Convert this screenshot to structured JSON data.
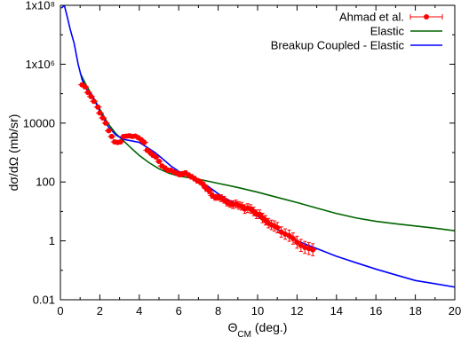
{
  "chart_data": {
    "type": "line",
    "xlabel": "Θ",
    "xlabel_sub": "CM",
    "xlabel_unit": " (deg.)",
    "ylabel": "dσ/dΩ (mb/sr)",
    "xlim": [
      0,
      20
    ],
    "ylim": [
      0.01,
      100000000
    ],
    "y_scale": "log",
    "grid": false,
    "legend_position": "top-right",
    "x_ticks": [
      0,
      2,
      4,
      6,
      8,
      10,
      12,
      14,
      16,
      18,
      20
    ],
    "x_tick_labels": [
      "0",
      "2",
      "4",
      "6",
      "8",
      "10",
      "12",
      "14",
      "16",
      "18",
      "20"
    ],
    "y_ticks": [
      0.01,
      1,
      100,
      10000,
      1000000,
      100000000
    ],
    "y_tick_labels": [
      "0.01",
      "1",
      "100",
      "10000",
      "1x10⁶",
      "1x10⁸"
    ],
    "series": [
      {
        "name": "Ahmad et al.",
        "kind": "points-with-errorbars",
        "color": "#ff0000",
        "x": [
          1.1,
          1.25,
          1.4,
          1.55,
          1.7,
          1.9,
          2.0,
          2.15,
          2.3,
          2.45,
          2.6,
          2.75,
          2.9,
          3.05,
          3.2,
          3.35,
          3.5,
          3.65,
          3.8,
          3.95,
          4.1,
          4.25,
          4.4,
          4.55,
          4.7,
          4.85,
          5.0,
          5.15,
          5.3,
          5.45,
          5.6,
          5.75,
          5.9,
          6.05,
          6.2,
          6.35,
          6.5,
          6.65,
          6.8,
          6.95,
          7.1,
          7.25,
          7.4,
          7.55,
          7.7,
          7.85,
          8.0,
          8.15,
          8.3,
          8.45,
          8.6,
          8.75,
          8.9,
          9.05,
          9.2,
          9.35,
          9.5,
          9.65,
          9.8,
          9.95,
          10.1,
          10.25,
          10.4,
          10.55,
          10.7,
          10.85,
          11.0,
          11.2,
          11.4,
          11.6,
          11.8,
          12.0,
          12.2,
          12.4,
          12.6,
          12.8
        ],
        "y": [
          200000,
          170000,
          110000,
          80000,
          55000,
          35000,
          22000,
          15000,
          10000,
          5500,
          3500,
          2300,
          2200,
          2300,
          3500,
          3600,
          3700,
          3500,
          3600,
          3200,
          2700,
          2200,
          1200,
          1000,
          800,
          700,
          500,
          350,
          300,
          250,
          250,
          220,
          200,
          180,
          190,
          200,
          170,
          150,
          130,
          110,
          100,
          80,
          60,
          50,
          35,
          30,
          30,
          28,
          25,
          20,
          18,
          17,
          18,
          16,
          15,
          12,
          13,
          12,
          10,
          8,
          8,
          6,
          5,
          4,
          3.5,
          3.2,
          2.8,
          2.0,
          1.7,
          1.5,
          1.2,
          0.9,
          0.7,
          0.6,
          0.55,
          0.5
        ],
        "yerr_frac": [
          0.15,
          0.15,
          0.15,
          0.15,
          0.15,
          0.15,
          0.15,
          0.15,
          0.15,
          0.15,
          0.15,
          0.15,
          0.15,
          0.15,
          0.15,
          0.15,
          0.15,
          0.15,
          0.15,
          0.15,
          0.15,
          0.15,
          0.15,
          0.15,
          0.15,
          0.15,
          0.15,
          0.15,
          0.15,
          0.15,
          0.15,
          0.15,
          0.2,
          0.2,
          0.2,
          0.2,
          0.2,
          0.2,
          0.2,
          0.2,
          0.2,
          0.25,
          0.25,
          0.25,
          0.25,
          0.25,
          0.25,
          0.3,
          0.3,
          0.3,
          0.3,
          0.35,
          0.35,
          0.35,
          0.35,
          0.4,
          0.4,
          0.4,
          0.4,
          0.4,
          0.4,
          0.45,
          0.45,
          0.45,
          0.45,
          0.5,
          0.5,
          0.5,
          0.5,
          0.55,
          0.55,
          0.6,
          0.6,
          0.6,
          0.6,
          0.6
        ],
        "xerr": 0.2
      },
      {
        "name": "Elastic",
        "kind": "line",
        "color": "#006400",
        "x": [
          1.0,
          1.3,
          1.6,
          2.0,
          2.4,
          2.8,
          3.2,
          3.6,
          4.0,
          4.5,
          5.0,
          5.5,
          6.0,
          6.5,
          7.0,
          8.0,
          9.0,
          10.0,
          11.0,
          12.0,
          13.0,
          14.0,
          15.0,
          16.0,
          17.0,
          18.0,
          19.0,
          20.0
        ],
        "y": [
          500000,
          200000,
          90000,
          30000,
          10000,
          4500,
          2500,
          1400,
          800,
          450,
          280,
          200,
          160,
          140,
          125,
          90,
          65,
          45,
          30,
          20,
          13,
          8.5,
          6.0,
          4.6,
          3.8,
          3.2,
          2.7,
          2.2
        ]
      },
      {
        "name": "Breakup Coupled - Elastic",
        "kind": "line",
        "color": "#0000ff",
        "x": [
          0.05,
          0.2,
          0.35,
          0.5,
          0.7,
          0.9,
          1.1,
          1.3,
          1.6,
          2.0,
          2.4,
          2.8,
          3.2,
          3.6,
          4.0,
          4.4,
          4.8,
          5.2,
          5.6,
          6.0,
          6.5,
          7.0,
          7.5,
          8.0,
          8.5,
          9.0,
          9.5,
          10.0,
          10.5,
          11.0,
          11.5,
          12.0,
          13.0,
          14.0,
          15.0,
          16.0,
          17.0,
          18.0,
          19.0,
          20.0
        ],
        "y": [
          80000000,
          100000000,
          40000000,
          15000000,
          5000000,
          1000000,
          300000,
          150000,
          90000,
          25000,
          8000,
          4000,
          2800,
          2500,
          2200,
          1500,
          1000,
          600,
          350,
          230,
          160,
          110,
          70,
          40,
          25,
          17,
          12,
          7,
          4,
          2.5,
          1.5,
          1.0,
          0.55,
          0.3,
          0.18,
          0.11,
          0.07,
          0.045,
          0.035,
          0.027
        ]
      }
    ]
  }
}
